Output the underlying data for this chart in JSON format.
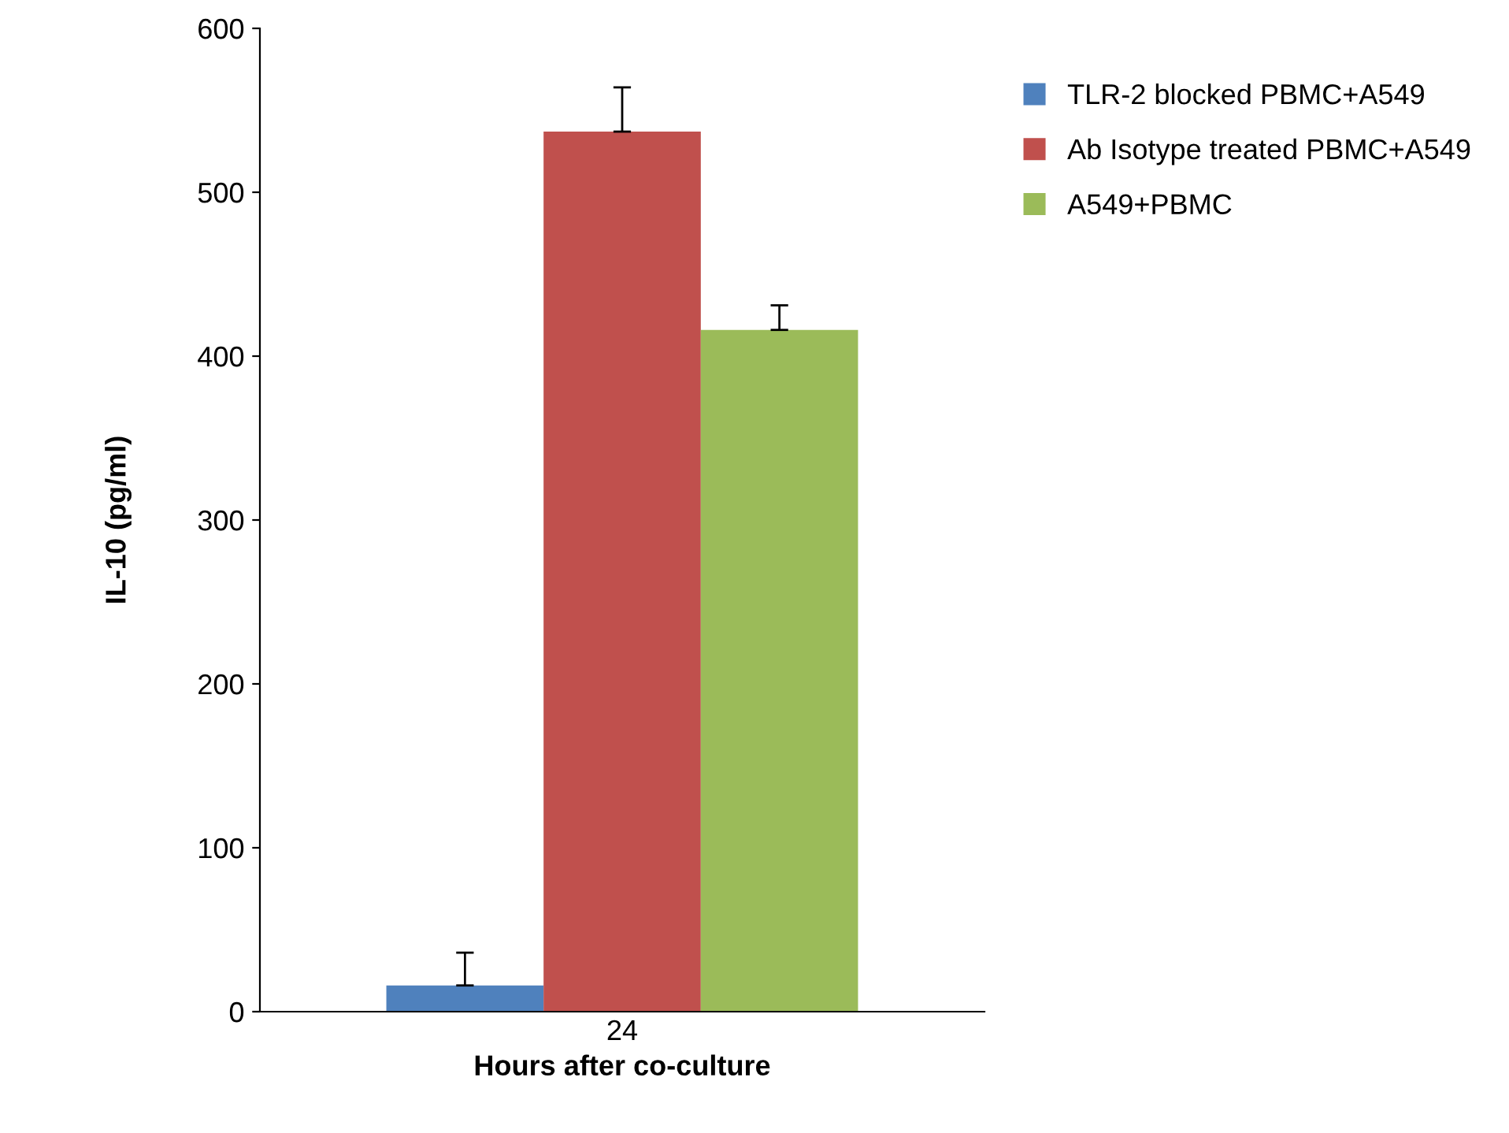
{
  "chart_data": {
    "type": "bar",
    "xlabel": "Hours after co-culture",
    "ylabel": "IL-10 (pg/ml)",
    "categories": [
      "24"
    ],
    "series": [
      {
        "name": "TLR-2 blocked PBMC+A549",
        "color": "#4f81bd",
        "values": [
          16
        ],
        "errors": [
          [
            16,
            36
          ]
        ]
      },
      {
        "name": "Ab Isotype treated PBMC+A549",
        "color": "#c0504d",
        "values": [
          537
        ],
        "errors": [
          [
            537,
            564
          ]
        ]
      },
      {
        "name": "A549+PBMC",
        "color": "#9bbb59",
        "values": [
          416
        ],
        "errors": [
          [
            416,
            431
          ]
        ]
      }
    ],
    "ylim": [
      0,
      600
    ],
    "yticks": [
      0,
      100,
      200,
      300,
      400,
      500,
      600
    ],
    "grid": false,
    "legend": "top right"
  }
}
